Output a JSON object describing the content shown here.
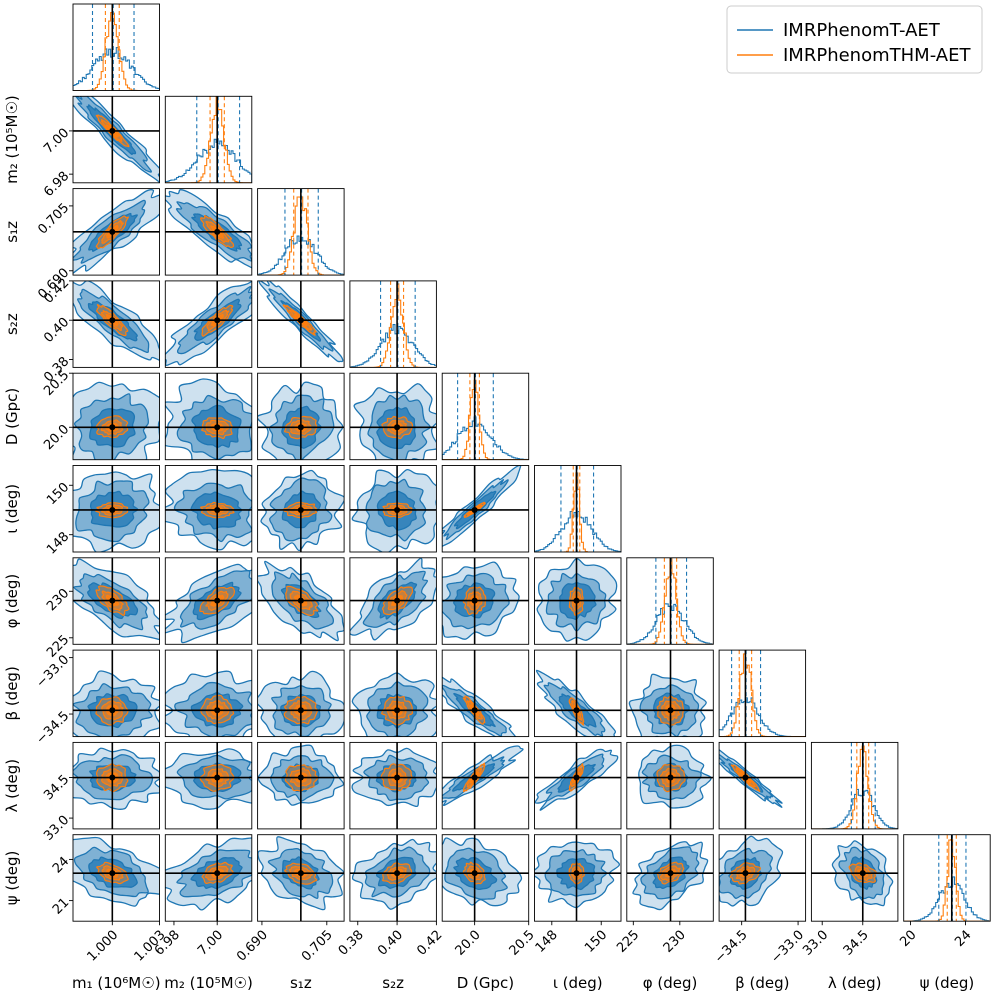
{
  "chart_data": {
    "type": "corner",
    "colors": {
      "series1": "#1f77b4",
      "series2": "#ff7f0e",
      "truth": "#000000"
    },
    "legend": {
      "placement": "top-right",
      "entries": [
        "IMRPhenomT-AET",
        "IMRPhenomTHM-AET"
      ]
    },
    "parameters": [
      {
        "key": "m1",
        "label": "m₁ (10⁶M☉)",
        "ylabel": "",
        "truth": 1.0,
        "range": [
          0.9975,
          1.003
        ],
        "ticks": [
          1.0,
          1.003
        ],
        "tick_labels": [
          "1.000",
          "1.003"
        ],
        "sd1": 0.0012,
        "sd2": 0.0004
      },
      {
        "key": "m2",
        "label": "m₂ (10⁵M☉)",
        "ylabel": "m₂ (10⁵M☉)",
        "truth": 7.0,
        "range": [
          6.976,
          7.016
        ],
        "ticks": [
          6.98,
          7.0
        ],
        "tick_labels": [
          "6.98",
          "7.00"
        ],
        "sd1": 0.009,
        "sd2": 0.003
      },
      {
        "key": "s1z",
        "label": "s₁z",
        "ylabel": "s₁z",
        "truth": 0.699,
        "range": [
          0.689,
          0.709
        ],
        "ticks": [
          0.69,
          0.705
        ],
        "tick_labels": [
          "0.690",
          "0.705"
        ],
        "sd1": 0.0035,
        "sd2": 0.0015
      },
      {
        "key": "s2z",
        "label": "s₂z",
        "ylabel": "s₂z",
        "truth": 0.4,
        "range": [
          0.376,
          0.42
        ],
        "ticks": [
          0.38,
          0.4,
          0.42
        ],
        "tick_labels": [
          "0.38",
          "0.40",
          "0.42"
        ],
        "sd1": 0.008,
        "sd2": 0.003
      },
      {
        "key": "D",
        "label": "D (Gpc)",
        "ylabel": "D (Gpc)",
        "truth": 20.0,
        "range": [
          19.7,
          20.5
        ],
        "ticks": [
          20.0,
          20.5
        ],
        "tick_labels": [
          "20.0",
          "20.5"
        ],
        "sd1": 0.15,
        "sd2": 0.04
      },
      {
        "key": "iota",
        "label": "ι (deg)",
        "ylabel": "ι (deg)",
        "truth": 149.0,
        "range": [
          147.3,
          150.8
        ],
        "ticks": [
          148,
          150
        ],
        "tick_labels": [
          "148",
          "150"
        ],
        "sd1": 0.6,
        "sd2": 0.12
      },
      {
        "key": "phi",
        "label": "φ (deg)",
        "ylabel": "φ (deg)",
        "truth": 229.0,
        "range": [
          224.3,
          233.6
        ],
        "ticks": [
          225,
          230
        ],
        "tick_labels": [
          "225",
          "230"
        ],
        "sd1": 1.5,
        "sd2": 0.6
      },
      {
        "key": "beta",
        "label": "β (deg)",
        "ylabel": "β (deg)",
        "truth": -34.4,
        "range": [
          -35.1,
          -32.8
        ],
        "ticks": [
          -34.5,
          -33.0
        ],
        "tick_labels": [
          "−34.5",
          "−33.0"
        ],
        "sd1": 0.35,
        "sd2": 0.15
      },
      {
        "key": "lambda",
        "label": "λ (deg)",
        "ylabel": "λ (deg)",
        "truth": 34.5,
        "range": [
          32.6,
          35.8
        ],
        "ticks": [
          33.0,
          34.5
        ],
        "tick_labels": [
          "33.0",
          "34.5"
        ],
        "sd1": 0.4,
        "sd2": 0.2
      },
      {
        "key": "psi",
        "label": "ψ (deg)",
        "ylabel": "ψ (deg)",
        "truth": 23.0,
        "range": [
          19.5,
          25.8
        ],
        "ticks": [
          21,
          24
        ],
        "tick_labels": [
          "21",
          "24"
        ],
        "sd1": 0.9,
        "sd2": 0.3
      }
    ],
    "x_tick_labels": {
      "m1": [
        "1.000",
        "1.003"
      ],
      "m2": [
        "6.98",
        "7.00"
      ],
      "s1z": [
        "0.690",
        "0.705"
      ],
      "s2z": [
        "0.38",
        "0.40",
        "0.42"
      ],
      "D": [
        "20.0",
        "20.5"
      ],
      "iota": [
        "148",
        "150"
      ],
      "phi": [
        "225",
        "230"
      ],
      "beta": [
        "−34.5",
        "−33.0"
      ],
      "lambda": [
        "33.0",
        "34.5"
      ],
      "psi": [
        "20",
        "24"
      ]
    },
    "x_tick_values": {
      "psi": [
        20,
        24
      ]
    },
    "correlations": [
      [
        0
      ],
      [
        -0.95,
        0
      ],
      [
        0.85,
        -0.85,
        0
      ],
      [
        -0.85,
        0.85,
        -0.95,
        0
      ],
      [
        0.1,
        -0.1,
        0.1,
        0.0,
        0
      ],
      [
        0.1,
        -0.1,
        0.1,
        0.0,
        0.95,
        0
      ],
      [
        -0.6,
        0.6,
        -0.6,
        0.6,
        0.1,
        0.0,
        0
      ],
      [
        0.0,
        0.0,
        0.0,
        0.0,
        -0.9,
        -0.85,
        0.0,
        0
      ],
      [
        0.0,
        0.0,
        0.0,
        0.0,
        0.9,
        0.85,
        0.0,
        -0.95,
        0
      ],
      [
        -0.4,
        0.4,
        -0.3,
        0.3,
        -0.3,
        0.0,
        0.4,
        0.3,
        -0.3,
        0
      ]
    ]
  }
}
